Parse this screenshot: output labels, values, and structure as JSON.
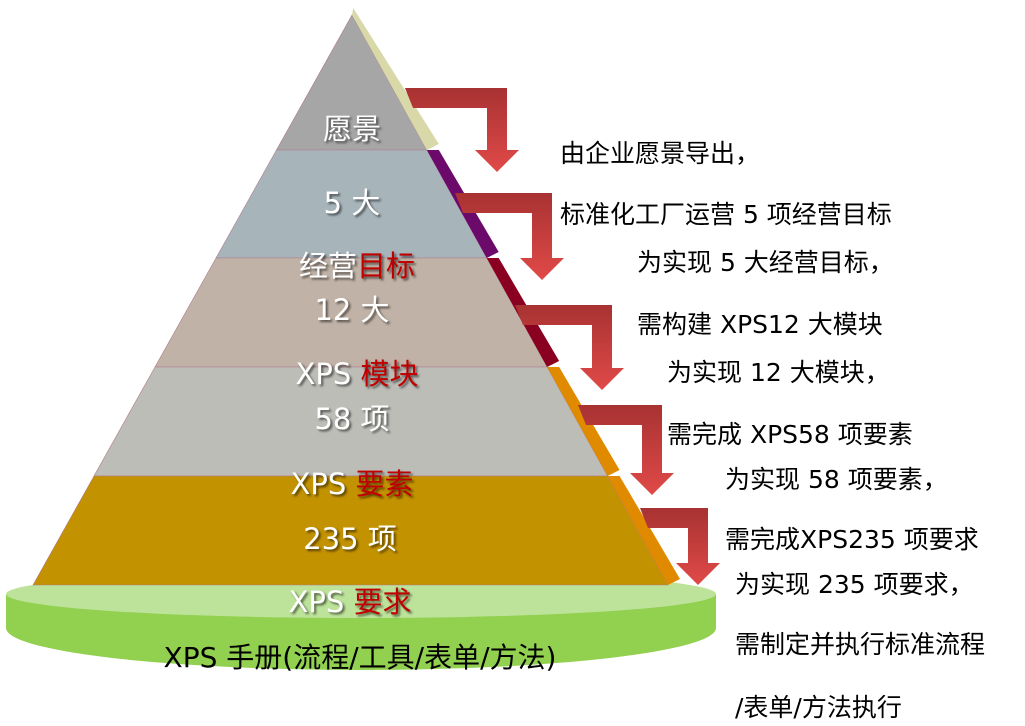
{
  "pyramid": {
    "levels": [
      {
        "line1": "愿景",
        "line2_plain": "",
        "line2_red": "",
        "color": "#a6a6a6",
        "edge_color": "#d8d8a8"
      },
      {
        "line1": "5 大",
        "line2_plain": "经营",
        "line2_red": "目标",
        "color": "#a7b5bb",
        "edge_color": "#6b0a6b"
      },
      {
        "line1": "12 大",
        "line2_plain": "XPS ",
        "line2_red": "模块",
        "color": "#c0b2a6",
        "edge_color": "#8a0020"
      },
      {
        "line1": "58 项",
        "line2_plain": "XPS ",
        "line2_red": "要素",
        "color": "#bdbdb8",
        "edge_color": "#e08a00"
      },
      {
        "line1": "235 项",
        "line2_plain": "XPS ",
        "line2_red": "要求",
        "color": "#c39200",
        "edge_color": "#e08a00"
      }
    ],
    "base_label": "XPS 手册(流程/工具/表单/方法)",
    "base_color": "#92d050",
    "base_top_color": "#bde39a"
  },
  "descriptions": [
    "由企业愿景导出，",
    "标准化工厂运营 5 项经营目标",
    "为实现 5 大经营目标，",
    "需构建 XPS12 大模块",
    "为实现 12 大模块，",
    "需完成 XPS58 项要素",
    "为实现 58 项要素，",
    "需完成XPS235 项要求",
    "为实现 235 项要求，",
    "需制定并执行标准流程",
    "/表单/方法执行"
  ],
  "arrow_color": "#c0393b"
}
